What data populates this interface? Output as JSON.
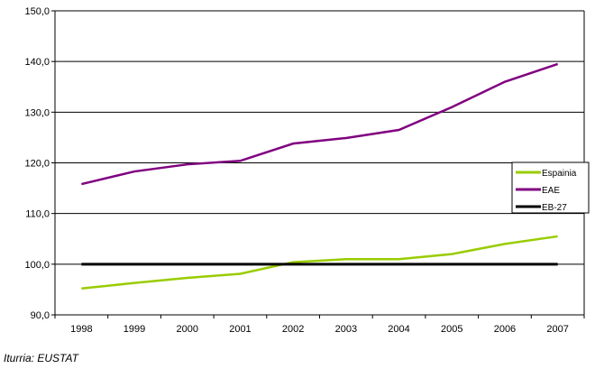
{
  "chart_data": {
    "type": "line",
    "categories": [
      "1998",
      "1999",
      "2000",
      "2001",
      "2002",
      "2003",
      "2004",
      "2005",
      "2006",
      "2007"
    ],
    "ylim": [
      90,
      150
    ],
    "yticks": [
      "90,0",
      "100,0",
      "110,0",
      "120,0",
      "130,0",
      "140,0",
      "150,0"
    ],
    "grid": true,
    "legend_position": "right",
    "series": [
      {
        "name": "Espainia",
        "color": "#99cc00",
        "values": [
          95.2,
          96.3,
          97.3,
          98.1,
          100.4,
          101.0,
          101.0,
          102.0,
          104.0,
          105.5
        ]
      },
      {
        "name": "EAE",
        "color": "#800080",
        "values": [
          115.8,
          118.3,
          119.7,
          120.4,
          123.8,
          124.9,
          126.5,
          131.0,
          136.0,
          139.5
        ]
      },
      {
        "name": "EB-27",
        "color": "#000000",
        "values": [
          100,
          100,
          100,
          100,
          100,
          100,
          100,
          100,
          100,
          100
        ]
      }
    ]
  },
  "source": "Iturria: EUSTAT"
}
